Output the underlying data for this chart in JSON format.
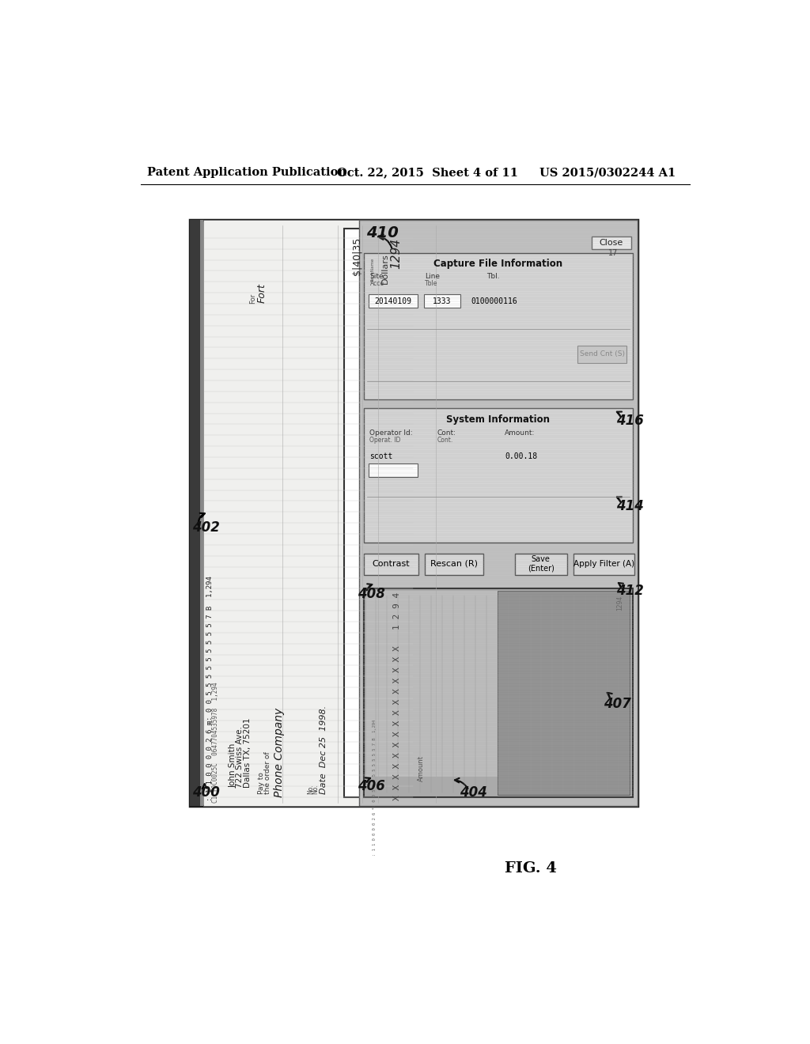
{
  "bg_color": "#ffffff",
  "header_left": "Patent Application Publication",
  "header_mid": "Oct. 22, 2015  Sheet 4 of 11",
  "header_right": "US 2015/0302244 A1",
  "fig_label": "FIG. 4",
  "label_400": "400",
  "label_402": "402",
  "label_404": "404",
  "label_406": "406",
  "label_407": "407",
  "label_408": "408",
  "label_410": "410",
  "label_412": "412",
  "label_414": "414",
  "label_416": "416"
}
